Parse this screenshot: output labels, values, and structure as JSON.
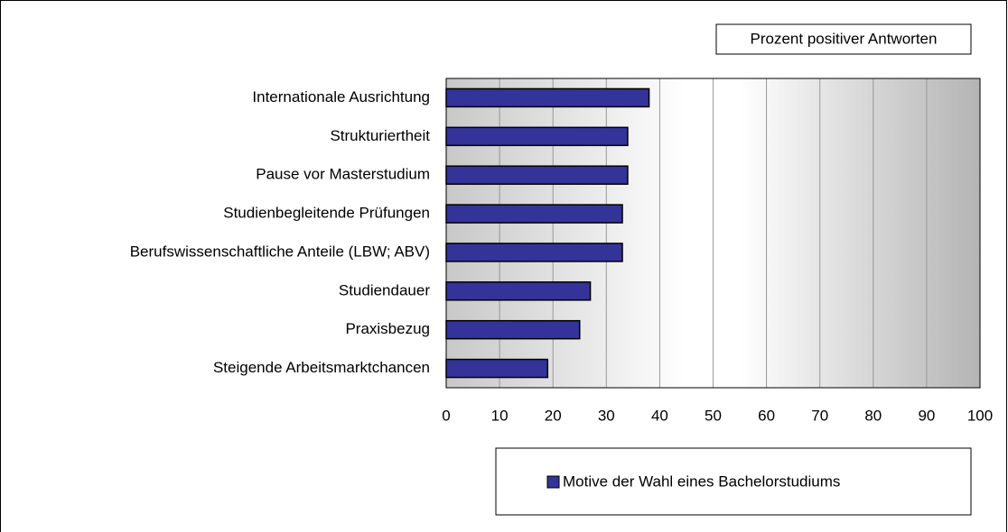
{
  "chart_data": {
    "type": "bar",
    "orientation": "horizontal",
    "annotation": "Prozent positiver Antworten",
    "categories": [
      "Internationale Ausrichtung",
      "Strukturiertheit",
      "Pause vor Masterstudium",
      "Studienbegleitende Prüfungen",
      "Berufswissenschaftliche Anteile (LBW; ABV)",
      "Studiendauer",
      "Praxisbezug",
      "Steigende Arbeitsmarktchancen"
    ],
    "series": [
      {
        "name": "Motive der Wahl eines Bachelorstudiums",
        "color": "#333399",
        "values": [
          38,
          34,
          34,
          33,
          33,
          27,
          25,
          19
        ]
      }
    ],
    "xlim": [
      0,
      100
    ],
    "xticks": [
      0,
      10,
      20,
      30,
      40,
      50,
      60,
      70,
      80,
      90,
      100
    ],
    "grid": true,
    "legend": "bottom"
  }
}
